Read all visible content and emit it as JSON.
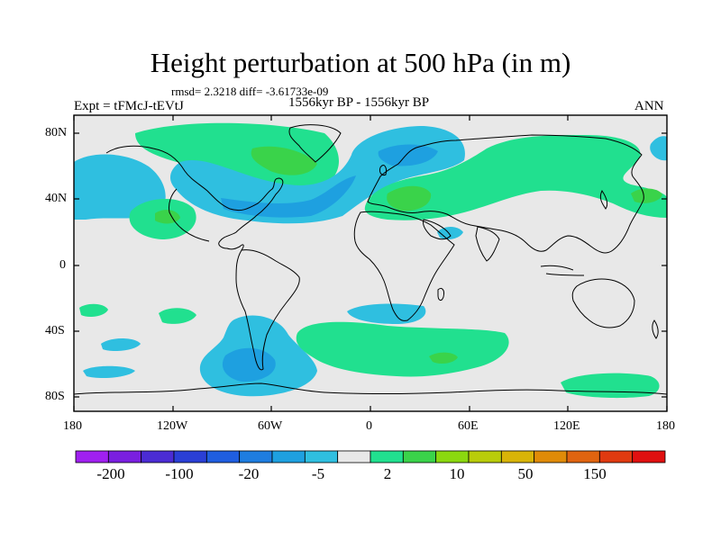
{
  "title": "Height perturbation at 500 hPa (in m)",
  "stats": "rmsd= 2.3218 diff= -3.61733e-09",
  "experiment": "Expt = tFMcJ-tEVtJ",
  "period": "1556kyr BP - 1556kyr BP",
  "season": "ANN",
  "y_axis": {
    "ticks": [
      "80N",
      "40N",
      "0",
      "40S",
      "80S"
    ]
  },
  "x_axis": {
    "ticks": [
      "180",
      "120W",
      "60W",
      "0",
      "60E",
      "120E",
      "180"
    ]
  },
  "colorbar": {
    "colors": [
      "#a020f0",
      "#7a1fe0",
      "#4b2cd4",
      "#2a3fd6",
      "#1f5ee0",
      "#1e7de0",
      "#1ea0e0",
      "#2fbfe0",
      "#e8e8e8",
      "#21e08f",
      "#3ad34a",
      "#8bd80f",
      "#b9cc0a",
      "#d8b408",
      "#e08b08",
      "#e06410",
      "#e03a10",
      "#e01010"
    ],
    "labels": [
      "-200",
      "-100",
      "-20",
      "-5",
      "2",
      "10",
      "50",
      "150"
    ]
  },
  "map_data": {
    "lon_range": [
      -180,
      180
    ],
    "lat_range": [
      -90,
      90
    ],
    "land_color": "#e8e8e8",
    "coast_color": "#000000"
  }
}
